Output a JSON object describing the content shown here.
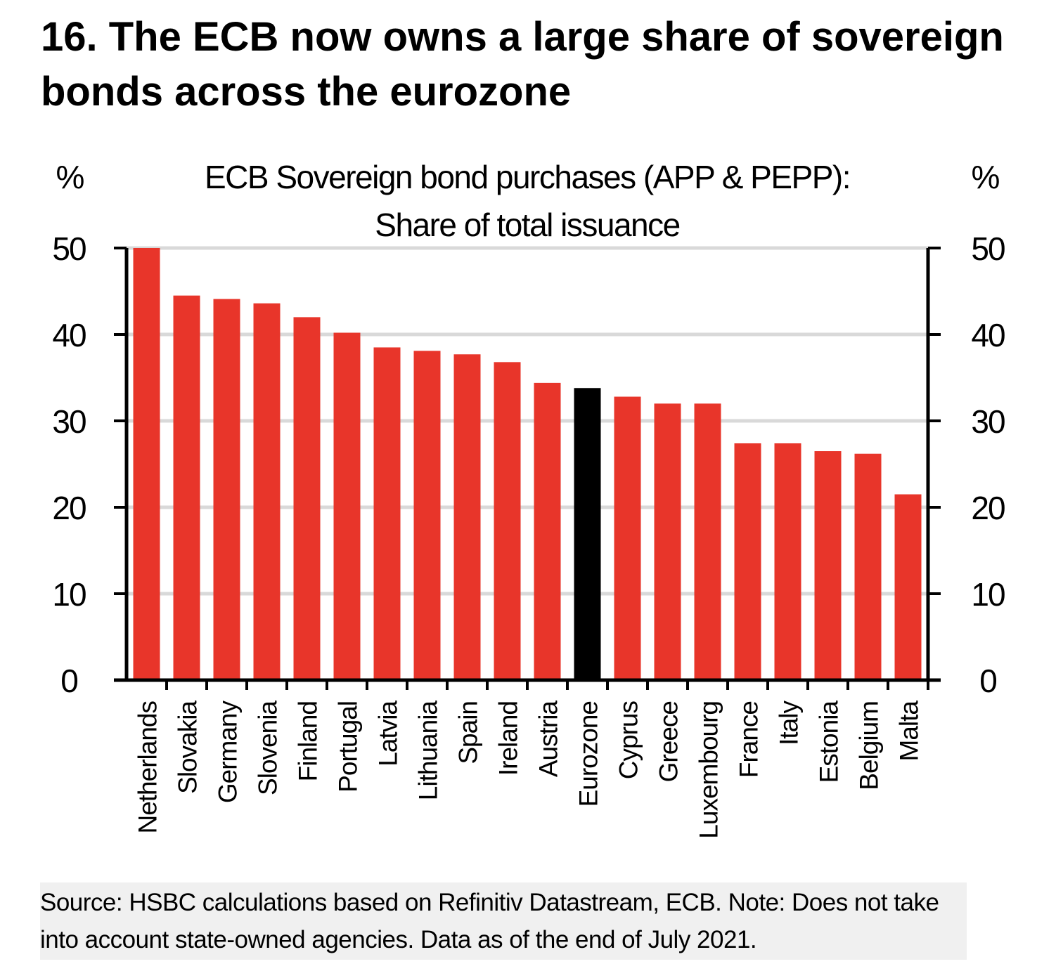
{
  "title": "16. The ECB now owns a large share of sovereign bonds across the eurozone",
  "note": "Source: HSBC calculations based on Refinitiv Datastream, ECB. Note: Does not take into account state-owned agencies. Data as of the end of July 2021.",
  "chart_data": {
    "type": "bar",
    "title_line1": "ECB Sovereign bond purchases (APP & PEPP):",
    "title_line2": "Share of total issuance",
    "ylabel_left": "%",
    "ylabel_right": "%",
    "ylim": [
      0,
      50
    ],
    "yticks": [
      "0",
      "10",
      "20",
      "30",
      "40",
      "50"
    ],
    "grid": true,
    "categories": [
      "Netherlands",
      "Slovakia",
      "Germany",
      "Slovenia",
      "Finland",
      "Portugal",
      "Latvia",
      "Lithuania",
      "Spain",
      "Ireland",
      "Austria",
      "Eurozone",
      "Cyprus",
      "Greece",
      "Luxembourg",
      "France",
      "Italy",
      "Estonia",
      "Belgium",
      "Malta"
    ],
    "values": [
      50.0,
      44.5,
      44.1,
      43.6,
      42.0,
      40.2,
      38.5,
      38.1,
      37.7,
      36.8,
      34.4,
      33.8,
      32.8,
      32.0,
      32.0,
      27.4,
      27.4,
      26.5,
      26.2,
      21.5
    ],
    "colors": {
      "default": "#e8352a",
      "highlight": "#000000",
      "highlight_category": "Eurozone",
      "grid": "#d9d9d9"
    }
  }
}
